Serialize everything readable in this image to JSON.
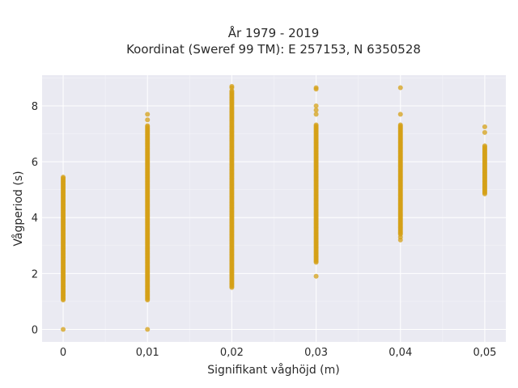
{
  "chart_data": {
    "type": "scatter",
    "title": "År 1979 - 2019",
    "subtitle": "Koordinat (Sweref 99 TM): E 257153, N 6350528",
    "xlabel": "Signifikant våghöjd (m)",
    "ylabel": "Vågperiod (s)",
    "xlim": [
      -0.0025,
      0.0525
    ],
    "ylim": [
      -0.45,
      9.1
    ],
    "x_ticks": [
      0,
      0.01,
      0.02,
      0.03,
      0.04,
      0.05
    ],
    "x_tick_labels": [
      "0",
      "0,01",
      "0,02",
      "0,03",
      "0,04",
      "0,05"
    ],
    "y_ticks": [
      0,
      2,
      4,
      6,
      8
    ],
    "y_tick_labels": [
      "0",
      "2",
      "4",
      "6",
      "8"
    ],
    "grid": true,
    "marker_color": "#D4A017",
    "background_color": "#EAEAF2",
    "columns": [
      {
        "x": 0,
        "min": 1.05,
        "max": 5.45,
        "extra": [
          0.0
        ]
      },
      {
        "x": 0.01,
        "min": 1.05,
        "max": 7.3,
        "extra": [
          0.0,
          7.5,
          7.7
        ]
      },
      {
        "x": 0.02,
        "min": 1.5,
        "max": 8.55,
        "extra": [
          8.65,
          8.7
        ]
      },
      {
        "x": 0.03,
        "min": 2.4,
        "max": 7.35,
        "extra": [
          1.9,
          7.7,
          7.85,
          8.0,
          8.6,
          8.65
        ]
      },
      {
        "x": 0.04,
        "min": 3.4,
        "max": 7.35,
        "extra": [
          3.2,
          3.3,
          7.7,
          8.65
        ]
      },
      {
        "x": 0.05,
        "min": 4.85,
        "max": 6.6,
        "extra": [
          7.05,
          7.25
        ]
      }
    ]
  }
}
